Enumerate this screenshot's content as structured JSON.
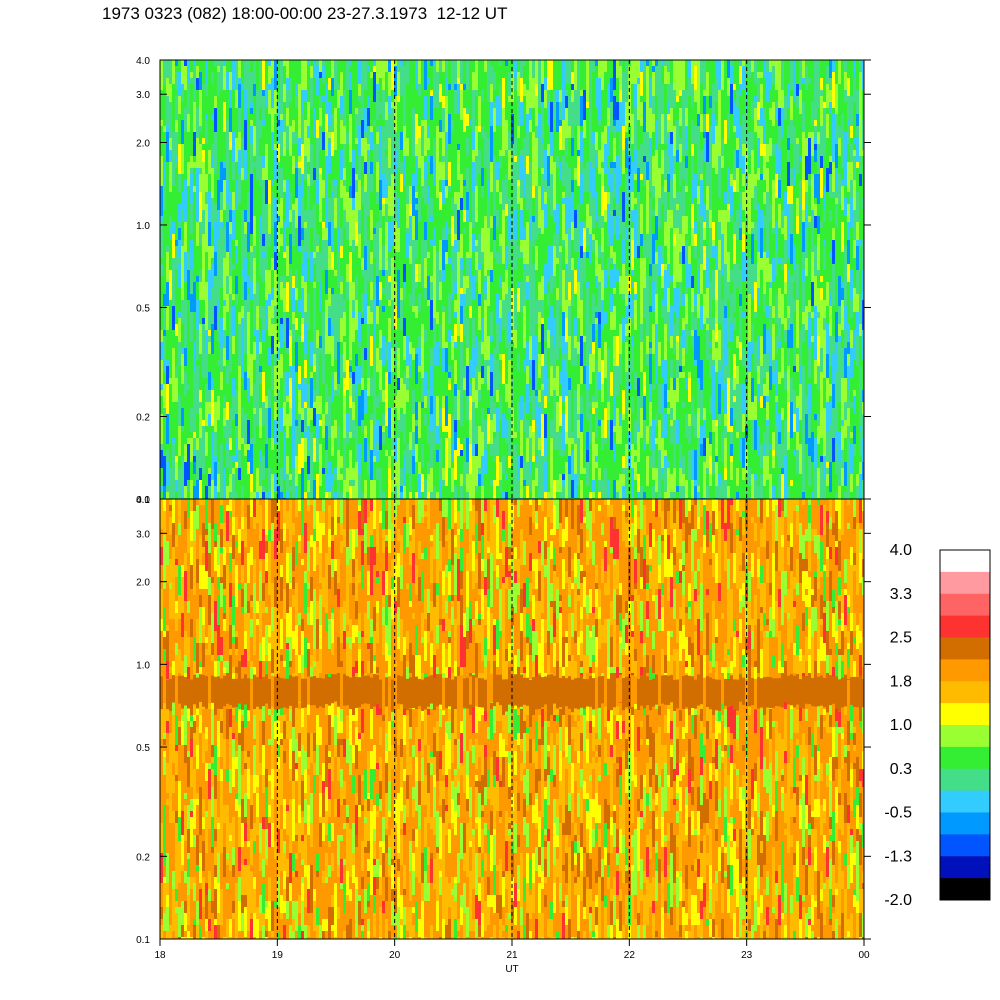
{
  "title": "1973 0323 (082) 18:00-00:00 23-27.3.1973  12-12 UT",
  "chart_data": {
    "type": "heatmap",
    "xlabel": "UT",
    "x_ticks": [
      "18",
      "19",
      "20",
      "21",
      "22",
      "23",
      "00"
    ],
    "x_range": [
      18,
      24
    ],
    "y_scale": "log",
    "panels": [
      {
        "y_range": [
          0.1,
          4.0
        ],
        "y_ticks": [
          "4.0",
          "3.0",
          "2.0",
          "1.0",
          "0.5",
          "0.2",
          "0.1"
        ],
        "dominant_levels": [
          "0.3",
          "1.0",
          "-0.5"
        ]
      },
      {
        "y_range": [
          0.1,
          4.0
        ],
        "y_ticks": [
          "4.0",
          "3.0",
          "2.0",
          "1.0",
          "0.5",
          "0.2",
          "0.1"
        ],
        "dominant_levels": [
          "1.8",
          "1.0",
          "2.5"
        ],
        "band_y_range": [
          0.7,
          0.9
        ]
      }
    ],
    "hour_gridlines": "dashed",
    "colorbar": {
      "labels": [
        "4.0",
        "3.3",
        "2.5",
        "1.8",
        "1.0",
        "0.3",
        "-0.5",
        "-1.3",
        "-2.0"
      ],
      "colors": [
        "#ffffff",
        "#ff9aa0",
        "#ff6464",
        "#ff3232",
        "#d26e00",
        "#ff9900",
        "#ffbb00",
        "#ffff00",
        "#99ff33",
        "#33ee33",
        "#44dd88",
        "#33ccff",
        "#0099ff",
        "#0055ff",
        "#0011bb",
        "#000000"
      ]
    }
  }
}
